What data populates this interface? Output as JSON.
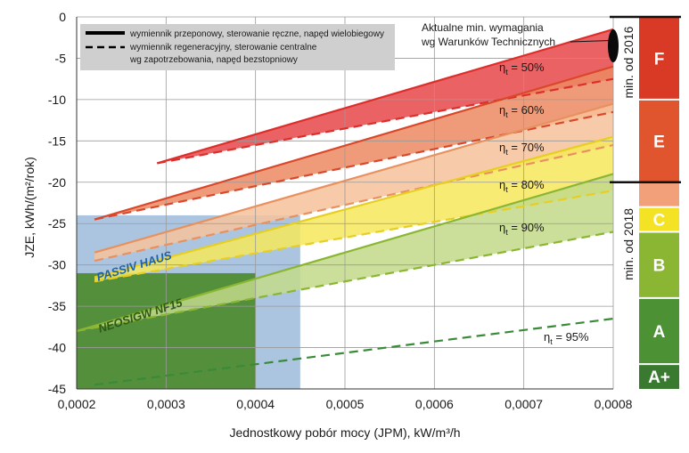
{
  "chart_data": {
    "type": "line",
    "xlabel": "Jednostkowy pobór mocy (JPM), kW/m³/h",
    "ylabel": "JZE, kWh/(m²/rok)",
    "xlim": [
      0.0002,
      0.0008
    ],
    "ylim": [
      -45,
      0
    ],
    "x_ticks": [
      "0,0002",
      "0,0003",
      "0,0004",
      "0,0005",
      "0,0006",
      "0,0007",
      "0,0008"
    ],
    "y_ticks": [
      "0",
      "-5",
      "-10",
      "-15",
      "-20",
      "-25",
      "-30",
      "-35",
      "-40",
      "-45"
    ],
    "grid": true,
    "legend": {
      "position": "top-left",
      "solid": "wymiennik przeponowy, sterowanie ręczne, napęd wielobiegowy",
      "dashed_line1": "wymiennik regeneracyjny, sterowanie centralne",
      "dashed_line2": "wg zapotrzebowania, napęd bezstopniowy"
    },
    "series": [
      {
        "name": "ηt = 50%",
        "label": "η",
        "sub": "t",
        "suffix": " = 50%",
        "color": "#dc2f2c",
        "fill": "#e8474a",
        "solid": {
          "x": [
            0.00029,
            0.0008
          ],
          "y": [
            -17.7,
            -1.5
          ]
        },
        "dashed": {
          "x": [
            0.00029,
            0.0008
          ],
          "y": [
            -17.7,
            -7.5
          ]
        }
      },
      {
        "name": "ηt = 60%",
        "label": "η",
        "sub": "t",
        "suffix": " = 60%",
        "color": "#d9482a",
        "fill": "#ec8a62",
        "solid": {
          "x": [
            0.00022,
            0.0008
          ],
          "y": [
            -24.5,
            -6.0
          ]
        },
        "dashed": {
          "x": [
            0.00022,
            0.0008
          ],
          "y": [
            -24.5,
            -11.5
          ]
        }
      },
      {
        "name": "ηt = 70%",
        "label": "η",
        "sub": "t",
        "suffix": " = 70%",
        "color": "#e8915f",
        "fill": "#f6c29b",
        "solid": {
          "x": [
            0.00022,
            0.0008
          ],
          "y": [
            -28.5,
            -10.5
          ]
        },
        "dashed": {
          "x": [
            0.00022,
            0.0008
          ],
          "y": [
            -29.5,
            -15.5
          ]
        }
      },
      {
        "name": "ηt = 80%",
        "label": "η",
        "sub": "t",
        "suffix": " = 80%",
        "color": "#e7cf21",
        "fill": "#f6e85c",
        "solid": {
          "x": [
            0.00022,
            0.0008
          ],
          "y": [
            -31.5,
            -14.5
          ]
        },
        "dashed": {
          "x": [
            0.00022,
            0.0008
          ],
          "y": [
            -32.0,
            -21.0
          ]
        }
      },
      {
        "name": "ηt = 90%",
        "label": "η",
        "sub": "t",
        "suffix": " = 90%",
        "color": "#8ab631",
        "fill": "#c2d98a",
        "solid": {
          "x": [
            0.0002,
            0.0008
          ],
          "y": [
            -38.0,
            -19.0
          ]
        },
        "dashed": {
          "x": [
            0.0002,
            0.0008
          ],
          "y": [
            -38.0,
            -26.0
          ]
        }
      },
      {
        "name": "ηt = 95%",
        "label": "η",
        "sub": "t",
        "suffix": " = 95%",
        "color": "#3a8a3a",
        "fill": "",
        "solid": null,
        "dashed": {
          "x": [
            0.00022,
            0.0008
          ],
          "y": [
            -44.5,
            -36.5
          ]
        }
      }
    ],
    "regions": [
      {
        "name": "PASSIV HAUS",
        "color": "#8fb2d6",
        "text_color": "#1e63a8",
        "x": [
          0.0002,
          0.00045
        ],
        "y": [
          -45,
          -24
        ]
      },
      {
        "name": "NEOSIGW NF15",
        "color": "#4c8a2e",
        "text_color": "#2e5a17",
        "x": [
          0.0002,
          0.0004
        ],
        "y": [
          -45,
          -31
        ]
      }
    ],
    "energy_classes": [
      {
        "label": "F",
        "from": 0,
        "to": -10,
        "color": "#d93a26"
      },
      {
        "label": "E",
        "from": -10,
        "to": -20,
        "color": "#e0552d"
      },
      {
        "label": "",
        "from": -20,
        "to": -23,
        "color": "#f2a079"
      },
      {
        "label": "C",
        "from": -23,
        "to": -26,
        "color": "#f4e325"
      },
      {
        "label": "B",
        "from": -26,
        "to": -34,
        "color": "#8ab634"
      },
      {
        "label": "A",
        "from": -34,
        "to": -42,
        "color": "#4c9234"
      },
      {
        "label": "A+",
        "from": -42,
        "to": -45,
        "color": "#3a7a30"
      }
    ],
    "thresholds": [
      {
        "label": "min. od 2016",
        "y": 0
      },
      {
        "label": "min. od 2018",
        "y": -20
      }
    ],
    "annotation": {
      "line1": "Aktualne min. wymagania",
      "line2": "wg Warunków Technicznych",
      "x": 0.0008,
      "y_from": -1.5,
      "y_to": -5.5
    }
  }
}
